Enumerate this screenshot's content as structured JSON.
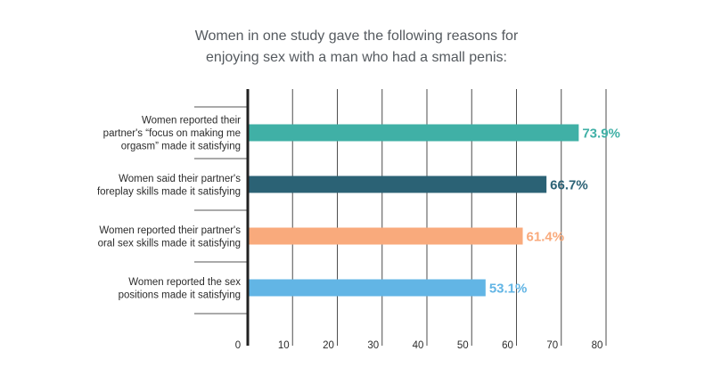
{
  "chart_data": {
    "type": "bar",
    "orientation": "horizontal",
    "title_lines": [
      "Women in one study gave the following reasons for",
      "enjoying sex with a man who had a small penis:"
    ],
    "categories": [
      [
        "Women reported their",
        "partner's “focus on making me",
        "orgasm” made it satisfying"
      ],
      [
        "Women said their partner's",
        "foreplay skills made it satisfying"
      ],
      [
        "Women reported their partner's",
        "oral sex skills made it satisfying"
      ],
      [
        "Women reported the sex",
        "positions made it satisfying"
      ]
    ],
    "values": [
      73.9,
      66.7,
      61.4,
      53.1
    ],
    "value_labels": [
      "73.9%",
      "66.7%",
      "61.4%",
      "53.1%"
    ],
    "colors": [
      "#40b0a6",
      "#2b6275",
      "#f9aa7c",
      "#62b5e5"
    ],
    "xlim": [
      0,
      80
    ],
    "xticks": [
      0,
      10,
      20,
      30,
      40,
      50,
      60,
      70,
      80
    ],
    "grid": "vertical"
  }
}
